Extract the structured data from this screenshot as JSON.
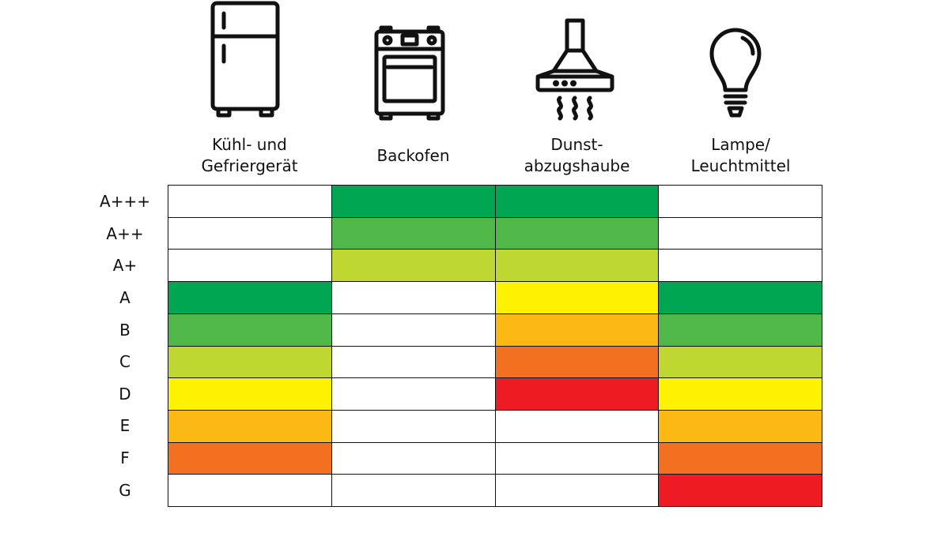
{
  "chart_data": {
    "type": "table",
    "columns": [
      {
        "label": "Kühl- und\nGefriergerät",
        "icon": "fridge-icon"
      },
      {
        "label": "Backofen",
        "icon": "oven-icon"
      },
      {
        "label": "Dunst-\nabzugshaube",
        "icon": "range-hood-icon"
      },
      {
        "label": "Lampe/\nLeuchtmittel",
        "icon": "light-bulb-icon"
      }
    ],
    "rows": [
      "A+++",
      "A++",
      "A+",
      "A",
      "B",
      "C",
      "D",
      "E",
      "F",
      "G"
    ],
    "cells": [
      [
        "",
        "A+++",
        "A+++",
        ""
      ],
      [
        "",
        "A++",
        "A++",
        ""
      ],
      [
        "",
        "A+",
        "A+",
        ""
      ],
      [
        "A",
        "",
        "A",
        "A"
      ],
      [
        "B",
        "",
        "B",
        "B"
      ],
      [
        "C",
        "",
        "C",
        "C"
      ],
      [
        "D",
        "",
        "D",
        "D"
      ],
      [
        "E",
        "",
        "",
        "E"
      ],
      [
        "F",
        "",
        "",
        "F"
      ],
      [
        "",
        "",
        "",
        "G"
      ]
    ],
    "color_scale": {
      "A+++": "#00A651",
      "A++": "#50B848",
      "A+": "#BFD730",
      "A": "#00A651",
      "B": "#50B848",
      "C": "#BFD730",
      "D": "#FFF200",
      "E": "#FDB913",
      "F": "#F37021",
      "G": "#ED1C24"
    },
    "column_overrides": {
      "2": {
        "A": "#FFF200",
        "B": "#FDB913",
        "C": "#F37021",
        "D": "#ED1C24"
      }
    },
    "empty_color": "#FFFFFF"
  }
}
